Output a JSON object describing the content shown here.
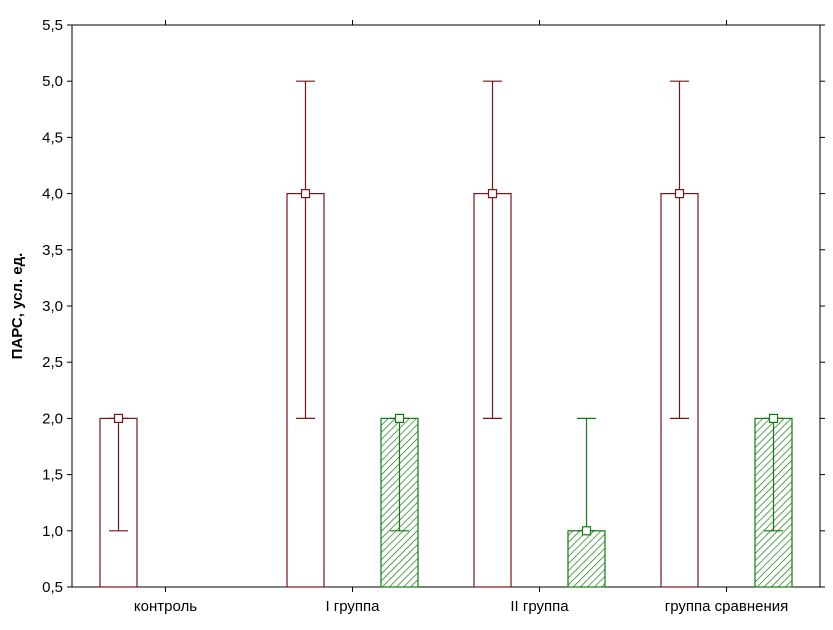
{
  "chart_data": {
    "type": "bar",
    "title": "",
    "xlabel": "",
    "ylabel": "ПАРС, усл. ед.",
    "ylim": [
      0.5,
      5.5
    ],
    "yticks": [
      "0,5",
      "1,0",
      "1,5",
      "2,0",
      "2,5",
      "3,0",
      "3,5",
      "4,0",
      "4,5",
      "5,0",
      "5,5"
    ],
    "ytick_values": [
      0.5,
      1.0,
      1.5,
      2.0,
      2.5,
      3.0,
      3.5,
      4.0,
      4.5,
      5.0,
      5.5
    ],
    "categories": [
      "контроль",
      "I группа",
      "II группа",
      "группа сравнения"
    ],
    "grid": false,
    "legend": "none",
    "series": [
      {
        "color": "#7a1419",
        "fill": "white",
        "values": [
          2.0,
          4.0,
          4.0,
          4.0
        ],
        "err_low": [
          1.0,
          2.0,
          2.0,
          2.0
        ],
        "err_high": [
          2.0,
          5.0,
          5.0,
          5.0
        ]
      },
      {
        "color": "#117a11",
        "fill": "hatch",
        "values": [
          null,
          2.0,
          1.0,
          2.0
        ],
        "err_low": [
          null,
          1.0,
          1.0,
          1.0
        ],
        "err_high": [
          null,
          2.0,
          2.0,
          2.0
        ]
      }
    ]
  }
}
